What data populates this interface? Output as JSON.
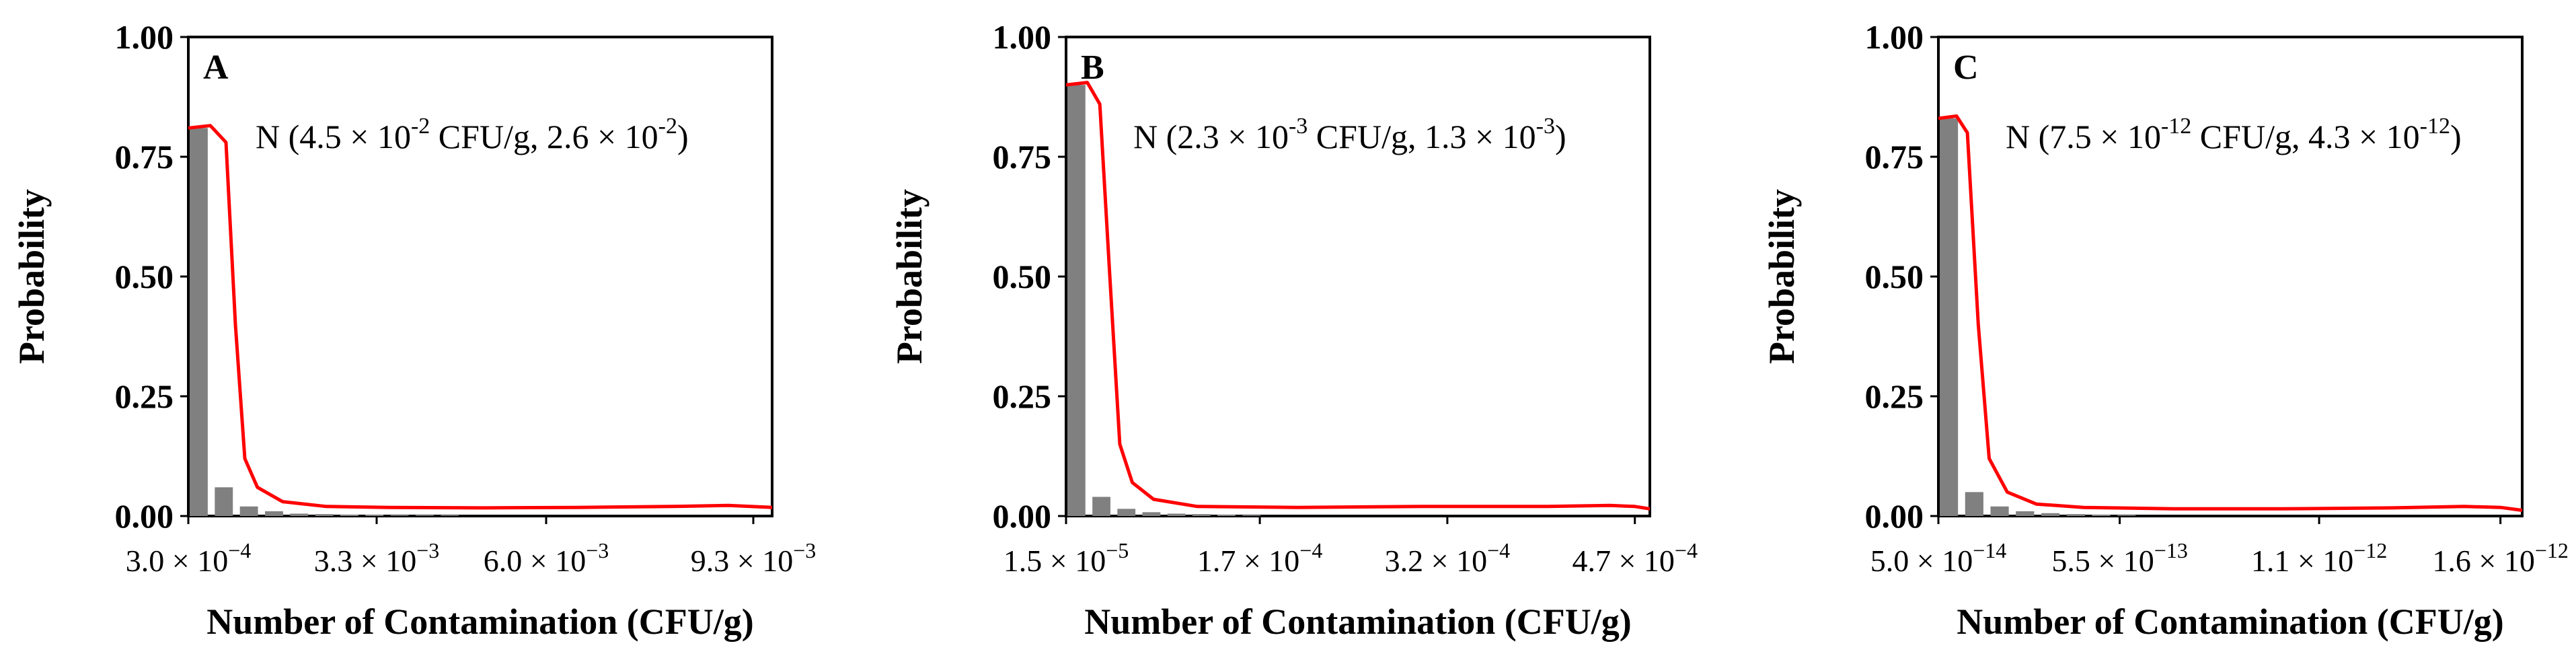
{
  "colors": {
    "bar": "#808080",
    "fit_line": "#ff0000",
    "axis": "#000000",
    "background": "#ffffff"
  },
  "chart_data": [
    {
      "type": "bar",
      "panel_label": "A",
      "ylabel": "Probability",
      "xlabel": "Number of Contamination (CFU/g)",
      "annotation": {
        "prefix": "N (",
        "mean_mantissa": "4.5",
        "mean_exp": "-2",
        "unit": "CFU/g",
        "sd_mantissa": "2.6",
        "sd_exp": "-2",
        "suffix": ")"
      },
      "yticks": [
        "0.00",
        "0.25",
        "0.50",
        "0.75",
        "1.00"
      ],
      "ylim": [
        0,
        1
      ],
      "xtick_labels": [
        {
          "mantissa": "3.0",
          "exp": "-4"
        },
        {
          "mantissa": "3.3",
          "exp": "-3"
        },
        {
          "mantissa": "6.0",
          "exp": "-3"
        },
        {
          "mantissa": "9.3",
          "exp": "-3"
        }
      ],
      "xtick_values": [
        0.0003,
        0.0033,
        0.006,
        0.0093
      ],
      "xlim": [
        0.0003,
        0.0096
      ],
      "bins": [
        0.0003,
        0.0007,
        0.0011,
        0.0015,
        0.0019,
        0.0023,
        0.0027,
        0.0031,
        0.0035,
        0.0039,
        0.0043
      ],
      "values": [
        0.81,
        0.06,
        0.02,
        0.01,
        0.005,
        0.004,
        0.003,
        0.003,
        0.002,
        0.002,
        0.002
      ],
      "fit": {
        "x": [
          0.0003,
          0.00065,
          0.0009,
          0.00105,
          0.0012,
          0.0014,
          0.0018,
          0.0025,
          0.0035,
          0.005,
          0.0065,
          0.008,
          0.0089,
          0.0096
        ],
        "y": [
          0.81,
          0.815,
          0.78,
          0.4,
          0.12,
          0.06,
          0.03,
          0.02,
          0.018,
          0.017,
          0.018,
          0.02,
          0.022,
          0.018
        ]
      }
    },
    {
      "type": "bar",
      "panel_label": "B",
      "ylabel": "Probability",
      "xlabel": "Number of Contamination (CFU/g)",
      "annotation": {
        "prefix": "N (",
        "mean_mantissa": "2.3",
        "mean_exp": "-3",
        "unit": "CFU/g",
        "sd_mantissa": "1.3",
        "sd_exp": "-3",
        "suffix": ")"
      },
      "yticks": [
        "0.00",
        "0.25",
        "0.50",
        "0.75",
        "1.00"
      ],
      "ylim": [
        0,
        1
      ],
      "xtick_labels": [
        {
          "mantissa": "1.5",
          "exp": "-5"
        },
        {
          "mantissa": "1.7",
          "exp": "-4"
        },
        {
          "mantissa": "3.2",
          "exp": "-4"
        },
        {
          "mantissa": "4.7",
          "exp": "-4"
        }
      ],
      "xtick_values": [
        1.5e-05,
        0.00017,
        0.00032,
        0.00047
      ],
      "xlim": [
        1.5e-05,
        0.000482
      ],
      "bins": [
        1.5e-05,
        3.5e-05,
        5.5e-05,
        7.5e-05,
        9.5e-05,
        0.000115,
        0.000135,
        0.000155
      ],
      "values": [
        0.9,
        0.04,
        0.015,
        0.008,
        0.005,
        0.004,
        0.003,
        0.002
      ],
      "fit": {
        "x": [
          1.5e-05,
          3.2e-05,
          4.2e-05,
          5e-05,
          5.8e-05,
          6.8e-05,
          8.5e-05,
          0.00012,
          0.0002,
          0.0003,
          0.0004,
          0.00045,
          0.00047,
          0.000482
        ],
        "y": [
          0.9,
          0.905,
          0.86,
          0.5,
          0.15,
          0.07,
          0.035,
          0.02,
          0.018,
          0.02,
          0.02,
          0.022,
          0.02,
          0.015
        ]
      }
    },
    {
      "type": "bar",
      "panel_label": "C",
      "ylabel": "Probability",
      "xlabel": "Number of Contamination (CFU/g)",
      "annotation": {
        "prefix": "N (",
        "mean_mantissa": "7.5",
        "mean_exp": "-12",
        "unit": "CFU/g",
        "sd_mantissa": "4.3",
        "sd_exp": "-12",
        "suffix": ")"
      },
      "yticks": [
        "0.00",
        "0.25",
        "0.50",
        "0.75",
        "1.00"
      ],
      "ylim": [
        0,
        1
      ],
      "xtick_labels": [
        {
          "mantissa": "5.0",
          "exp": "-14"
        },
        {
          "mantissa": "5.5",
          "exp": "-13"
        },
        {
          "mantissa": "1.1",
          "exp": "-12"
        },
        {
          "mantissa": "1.6",
          "exp": "-12"
        }
      ],
      "xtick_values": [
        5e-14,
        5.5e-13,
        1.1e-12,
        1.6e-12
      ],
      "xlim": [
        5e-14,
        1.66e-12
      ],
      "bins": [
        5e-14,
        1.2e-13,
        1.9e-13,
        2.6e-13,
        3.3e-13,
        4e-13,
        4.7e-13,
        5.4e-13
      ],
      "values": [
        0.83,
        0.05,
        0.02,
        0.01,
        0.006,
        0.004,
        0.003,
        0.002
      ],
      "fit": {
        "x": [
          5e-14,
          1e-13,
          1.3e-13,
          1.6e-13,
          1.9e-13,
          2.4e-13,
          3.2e-13,
          4.5e-13,
          7e-13,
          1e-12,
          1.3e-12,
          1.5e-12,
          1.6e-12,
          1.66e-12
        ],
        "y": [
          0.83,
          0.835,
          0.8,
          0.4,
          0.12,
          0.05,
          0.025,
          0.018,
          0.015,
          0.015,
          0.017,
          0.02,
          0.018,
          0.012
        ]
      }
    }
  ]
}
